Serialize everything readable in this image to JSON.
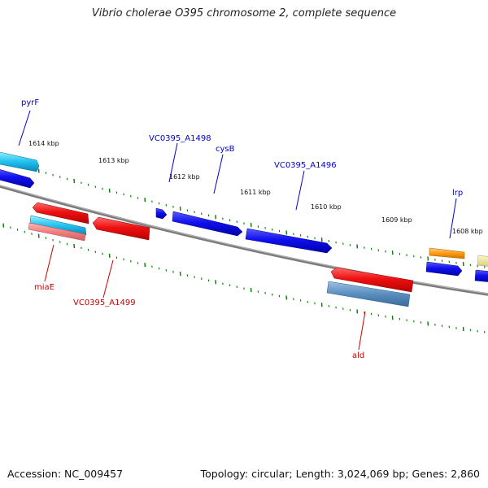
{
  "title": "Vibrio cholerae O395 chromosome 2, complete sequence",
  "footer": {
    "accession": "Accession: NC_009457",
    "summary": "Topology: circular; Length: 3,024,069 bp; Genes: 2,860"
  },
  "colors": {
    "forward_label": "#0000cc",
    "reverse_label": "#cc0000",
    "backbone": "#888888",
    "tick": "#007a00"
  },
  "kbp_labels": [
    "1614 kbp",
    "1613 kbp",
    "1612 kbp",
    "1611 kbp",
    "1610 kbp",
    "1609 kbp",
    "1608 kbp"
  ],
  "gene_labels": {
    "pyrF": "pyrF",
    "vc0395_a1498": "VC0395_A1498",
    "cysB": "cysB",
    "vc0395_a1496": "VC0395_A1496",
    "lrp": "lrp",
    "miaE": "miaE",
    "vc0395_a1499": "VC0395_A1499",
    "ald": "ald"
  }
}
